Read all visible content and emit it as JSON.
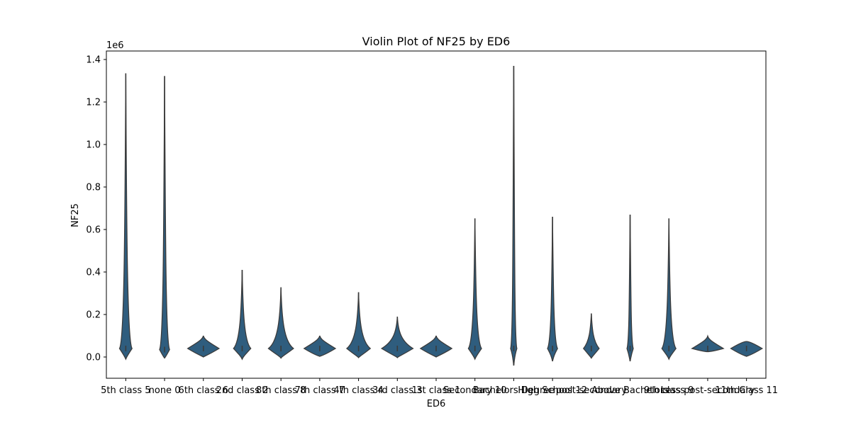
{
  "chart_data": {
    "type": "violin",
    "title": "Violin Plot of NF25 by ED6",
    "xlabel": "ED6",
    "ylabel": "NF25",
    "y_offset_label": "1e6",
    "ylim": [
      -0.1,
      1.44
    ],
    "yticks": [
      0.0,
      0.2,
      0.4,
      0.6,
      0.8,
      1.0,
      1.2,
      1.4
    ],
    "ytick_labels": [
      "0.0",
      "0.2",
      "0.4",
      "0.6",
      "0.8",
      "1.0",
      "1.2",
      "1.4"
    ],
    "grid": false,
    "fill_color": "#2f5d7e",
    "line_color": "#3b3b3b",
    "categories": [
      "5th class 5",
      "none 0",
      "6th class 6",
      "2nd class 2",
      "8th class 8",
      "7th class 7",
      "4th class 4",
      "3rd class 3",
      "1st class 1",
      "Secondary 10",
      "Bachelors Degree",
      "High School 12",
      "post-secondary",
      "Above Bachelors",
      "9th class 9",
      "Less post-secondary",
      "11th Class 11"
    ],
    "violins": [
      {
        "min": -0.01,
        "max": 1.335,
        "center": 0.04,
        "width": 0.4
      },
      {
        "min": -0.005,
        "max": 1.322,
        "center": 0.035,
        "width": 0.32
      },
      {
        "min": 0.0,
        "max": 0.1,
        "center": 0.04,
        "width": 1.0
      },
      {
        "min": -0.01,
        "max": 0.41,
        "center": 0.04,
        "width": 0.55
      },
      {
        "min": -0.005,
        "max": 0.328,
        "center": 0.04,
        "width": 0.8
      },
      {
        "min": 0.003,
        "max": 0.1,
        "center": 0.04,
        "width": 1.0
      },
      {
        "min": -0.003,
        "max": 0.305,
        "center": 0.04,
        "width": 0.75
      },
      {
        "min": -0.003,
        "max": 0.19,
        "center": 0.04,
        "width": 1.0
      },
      {
        "min": 0.0,
        "max": 0.1,
        "center": 0.04,
        "width": 1.0
      },
      {
        "min": -0.01,
        "max": 0.652,
        "center": 0.04,
        "width": 0.42
      },
      {
        "min": -0.04,
        "max": 1.37,
        "center": 0.04,
        "width": 0.2
      },
      {
        "min": -0.02,
        "max": 0.66,
        "center": 0.04,
        "width": 0.32
      },
      {
        "min": -0.005,
        "max": 0.205,
        "center": 0.04,
        "width": 0.5
      },
      {
        "min": -0.02,
        "max": 0.67,
        "center": 0.04,
        "width": 0.2
      },
      {
        "min": -0.01,
        "max": 0.652,
        "center": 0.04,
        "width": 0.45
      },
      {
        "min": 0.025,
        "max": 0.098,
        "center": 0.04,
        "width": 1.0
      },
      {
        "min": 0.003,
        "max": 0.073,
        "center": 0.04,
        "width": 1.0
      }
    ]
  }
}
